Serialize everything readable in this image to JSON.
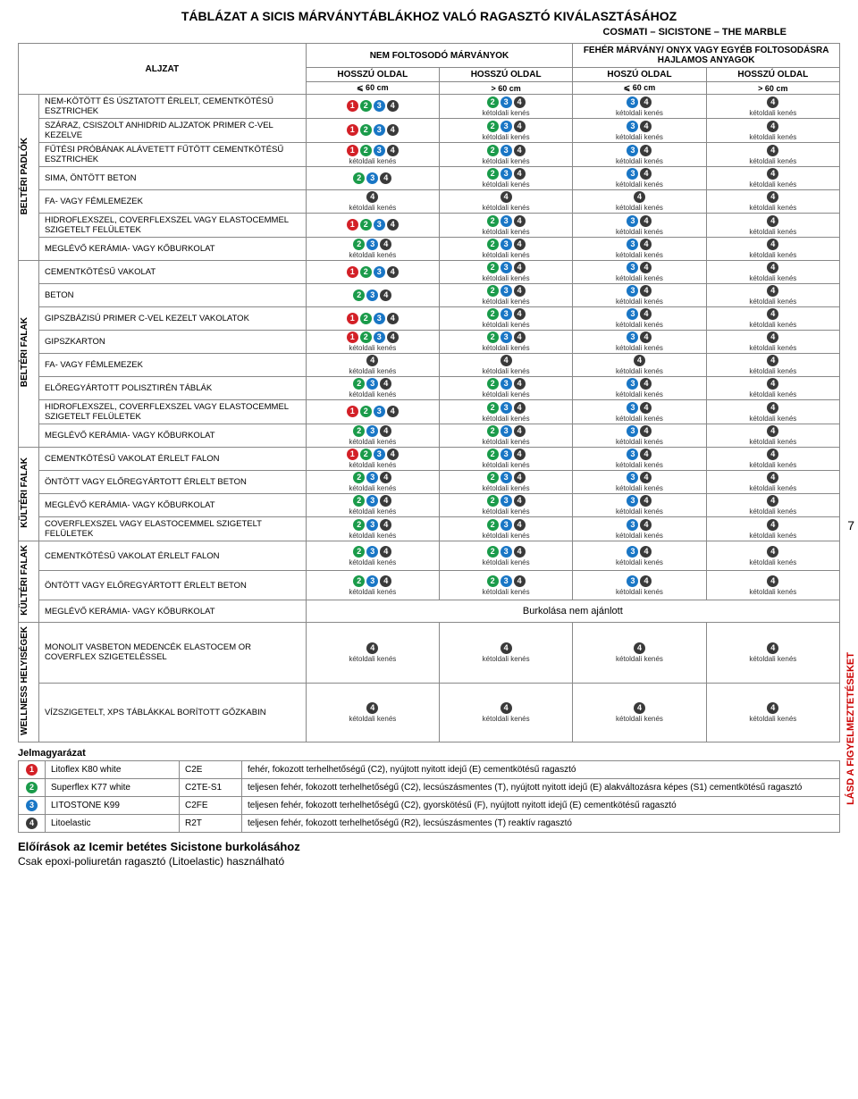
{
  "title": "TÁBLÁZAT A SICIS MÁRVÁNYTÁBLÁKHOZ VALÓ RAGASZTÓ KIVÁLASZTÁSÁHOZ",
  "subtitle": "COSMATI – SICISTONE – THE MARBLE",
  "aljzat": "ALJZAT",
  "hdr_left": "NEM FOLTOSODÓ MÁRVÁNYOK",
  "hdr_right": "FEHÉR MÁRVÁNY/ ONYX VAGY EGYÉB FOLTOSODÁSRA HAJLAMOS ANYAGOK",
  "col1_a": "HOSSZÚ OLDAL",
  "col1_b": "⩽ 60 cm",
  "col2_a": "HOSSZÚ OLDAL",
  "col2_b": "> 60 cm",
  "col3_a": "HOSZÚ OLDAL",
  "col3_b": "⩽ 60 cm",
  "col4_a": "HOSSZÚ OLDAL",
  "col4_b": "> 60 cm",
  "ket": "kétoldali kenés",
  "sections": [
    {
      "label": "BELTÉRI PADLÓK",
      "rows": [
        {
          "t": "NEM-KÖTÖTT ÉS ÚSZTATOTT ÉRLELT, CEMENTKÖTÉSŰ ESZTRICHEK",
          "c": [
            [
              "1234",
              ""
            ],
            [
              "234",
              "k"
            ],
            [
              "34",
              "k"
            ],
            [
              "4",
              "k"
            ]
          ]
        },
        {
          "t": "SZÁRAZ, CSISZOLT ANHIDRID ALJZATOK PRIMER C-VEL KEZELVE",
          "c": [
            [
              "1234",
              ""
            ],
            [
              "234",
              "k"
            ],
            [
              "34",
              "k"
            ],
            [
              "4",
              "k"
            ]
          ]
        },
        {
          "t": "FŰTÉSI PRÓBÁNAK ALÁVETETT FŰTÖTT CEMENTKÖTÉSŰ ESZTRICHEK",
          "c": [
            [
              "1234",
              "k"
            ],
            [
              "234",
              "k"
            ],
            [
              "34",
              "k"
            ],
            [
              "4",
              "k"
            ]
          ]
        },
        {
          "t": "SIMA, ÖNTÖTT BETON",
          "c": [
            [
              "234",
              ""
            ],
            [
              "234",
              "k"
            ],
            [
              "34",
              "k"
            ],
            [
              "4",
              "k"
            ]
          ]
        },
        {
          "t": "FA- VAGY FÉMLEMEZEK",
          "c": [
            [
              "4",
              "k"
            ],
            [
              "4",
              "k"
            ],
            [
              "4",
              "k"
            ],
            [
              "4",
              "k"
            ]
          ]
        },
        {
          "t": "HIDROFLEXSZEL, COVERFLEXSZEL VAGY ELASTOCEMMEL SZIGETELT FELÜLETEK",
          "c": [
            [
              "1234",
              ""
            ],
            [
              "234",
              "k"
            ],
            [
              "34",
              "k"
            ],
            [
              "4",
              "k"
            ]
          ]
        },
        {
          "t": "MEGLÉVŐ KERÁMIA- VAGY KŐBURKOLAT",
          "c": [
            [
              "234",
              "k"
            ],
            [
              "234",
              "k"
            ],
            [
              "34",
              "k"
            ],
            [
              "4",
              "k"
            ]
          ]
        }
      ]
    },
    {
      "label": "BELTÉRI FALAK",
      "rows": [
        {
          "t": "CEMENTKÖTÉSŰ VAKOLAT",
          "c": [
            [
              "1234",
              ""
            ],
            [
              "234",
              "k"
            ],
            [
              "34",
              "k"
            ],
            [
              "4",
              "k"
            ]
          ]
        },
        {
          "t": "BETON",
          "c": [
            [
              "234",
              ""
            ],
            [
              "234",
              "k"
            ],
            [
              "34",
              "k"
            ],
            [
              "4",
              "k"
            ]
          ]
        },
        {
          "t": "GIPSZBÁZISÚ PRIMER C-VEL KEZELT VAKOLATOK",
          "c": [
            [
              "1234",
              ""
            ],
            [
              "234",
              "k"
            ],
            [
              "34",
              "k"
            ],
            [
              "4",
              "k"
            ]
          ]
        },
        {
          "t": "GIPSZKARTON",
          "c": [
            [
              "1234",
              "k"
            ],
            [
              "234",
              "k"
            ],
            [
              "34",
              "k"
            ],
            [
              "4",
              "k"
            ]
          ]
        },
        {
          "t": "FA- VAGY FÉMLEMEZEK",
          "c": [
            [
              "4",
              "k"
            ],
            [
              "4",
              "k"
            ],
            [
              "4",
              "k"
            ],
            [
              "4",
              "k"
            ]
          ]
        },
        {
          "t": "ELŐREGYÁRTOTT POLISZTIRÉN TÁBLÁK",
          "c": [
            [
              "234",
              "k"
            ],
            [
              "234",
              "k"
            ],
            [
              "34",
              "k"
            ],
            [
              "4",
              "k"
            ]
          ]
        },
        {
          "t": "HIDROFLEXSZEL, COVERFLEXSZEL VAGY ELASTOCEMMEL SZIGETELT FELÜLETEK",
          "c": [
            [
              "1234",
              ""
            ],
            [
              "234",
              "k"
            ],
            [
              "34",
              "k"
            ],
            [
              "4",
              "k"
            ]
          ]
        },
        {
          "t": "MEGLÉVŐ KERÁMIA- VAGY KŐBURKOLAT",
          "c": [
            [
              "234",
              "k"
            ],
            [
              "234",
              "k"
            ],
            [
              "34",
              "k"
            ],
            [
              "4",
              "k"
            ]
          ]
        }
      ]
    },
    {
      "label": "KÜLTÉRI FALAK",
      "rows": [
        {
          "t": "CEMENTKÖTÉSŰ VAKOLAT ÉRLELT FALON",
          "c": [
            [
              "1234",
              "k"
            ],
            [
              "234",
              "k"
            ],
            [
              "34",
              "k"
            ],
            [
              "4",
              "k"
            ]
          ]
        },
        {
          "t": "ÖNTÖTT VAGY ELŐREGYÁRTOTT ÉRLELT BETON",
          "c": [
            [
              "234",
              "k"
            ],
            [
              "234",
              "k"
            ],
            [
              "34",
              "k"
            ],
            [
              "4",
              "k"
            ]
          ]
        },
        {
          "t": "MEGLÉVŐ KERÁMIA- VAGY KŐBURKOLAT",
          "c": [
            [
              "234",
              "k"
            ],
            [
              "234",
              "k"
            ],
            [
              "34",
              "k"
            ],
            [
              "4",
              "k"
            ]
          ]
        },
        {
          "t": "COVERFLEXSZEL VAGY ELASTOCEMMEL SZIGETELT FELÜLETEK",
          "c": [
            [
              "234",
              "k"
            ],
            [
              "234",
              "k"
            ],
            [
              "34",
              "k"
            ],
            [
              "4",
              "k"
            ]
          ]
        }
      ]
    },
    {
      "label": "KÜLTÉRI FALAK",
      "rows": [
        {
          "t": "CEMENTKÖTÉSŰ VAKOLAT ÉRLELT FALON",
          "c": [
            [
              "234",
              "k"
            ],
            [
              "234",
              "k"
            ],
            [
              "34",
              "k"
            ],
            [
              "4",
              "k"
            ]
          ]
        },
        {
          "t": "ÖNTÖTT VAGY ELŐREGYÁRTOTT ÉRLELT BETON",
          "c": [
            [
              "234",
              "k"
            ],
            [
              "234",
              "k"
            ],
            [
              "34",
              "k"
            ],
            [
              "4",
              "k"
            ]
          ]
        },
        {
          "t": "MEGLÉVŐ KERÁMIA- VAGY KŐBURKOLAT",
          "span": "Burkolása nem ajánlott"
        }
      ]
    },
    {
      "label": "WELLNESS HELYISÉGEK",
      "rows": [
        {
          "t": "MONOLIT VASBETON MEDENCÉK ELASTOCEM OR COVERFLEX SZIGETELÉSSEL",
          "c": [
            [
              "4",
              "k"
            ],
            [
              "4",
              "k"
            ],
            [
              "4",
              "k"
            ],
            [
              "4",
              "k"
            ]
          ]
        },
        {
          "t": "VÍZSZIGETELT, XPS TÁBLÁKKAL BORÍTOTT GŐZKABIN",
          "c": [
            [
              "4",
              "k"
            ],
            [
              "4",
              "k"
            ],
            [
              "4",
              "k"
            ],
            [
              "4",
              "k"
            ]
          ]
        }
      ]
    }
  ],
  "pagenum": "7",
  "vnote": "LÁSD A FIGYELMEZTETÉSEKET",
  "legend_title": "Jelmagyarázat",
  "legend": [
    {
      "n": "1",
      "name": "Litoflex K80 white",
      "code": "C2E",
      "desc": "fehér, fokozott terhelhetőségű (C2), nyújtott nyitott idejű (E) cementkötésű ragasztó"
    },
    {
      "n": "2",
      "name": "Superflex K77 white",
      "code": "C2TE-S1",
      "desc": "teljesen fehér, fokozott terhelhetőségű (C2), lecsúszásmentes (T), nyújtott nyitott idejű (E) alakváltozásra képes (S1) cementkötésű ragasztó"
    },
    {
      "n": "3",
      "name": "LITOSTONE K99",
      "code": "C2FE",
      "desc": "teljesen fehér, fokozott terhelhetőségű (C2), gyorskötésű (F), nyújtott nyitott idejű (E) cementkötésű ragasztó"
    },
    {
      "n": "4",
      "name": "Litoelastic",
      "code": "R2T",
      "desc": "teljesen fehér, fokozott terhelhetőségű (R2), lecsúszásmentes (T) reaktív ragasztó"
    }
  ],
  "footer1": "Előírások az Icemir betétes Sicistone burkolásához",
  "footer2": "Csak epoxi-poliuretán ragasztó (Litoelastic) használható"
}
